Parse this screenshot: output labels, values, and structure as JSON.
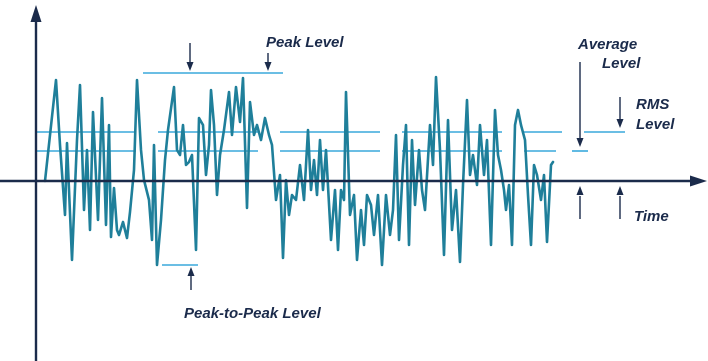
{
  "labels": {
    "peak_level": "Peak Level",
    "average_level": [
      "Average",
      "Level"
    ],
    "rms_level": [
      "RMS",
      "Level"
    ],
    "time": "Time",
    "peak_to_peak_level": "Peak-to-Peak Level"
  },
  "colors": {
    "signal": "#1f7f9a",
    "level_lines": "#3aa9dc",
    "axis": "#1b2b4b",
    "text": "#1b2b4b"
  }
}
